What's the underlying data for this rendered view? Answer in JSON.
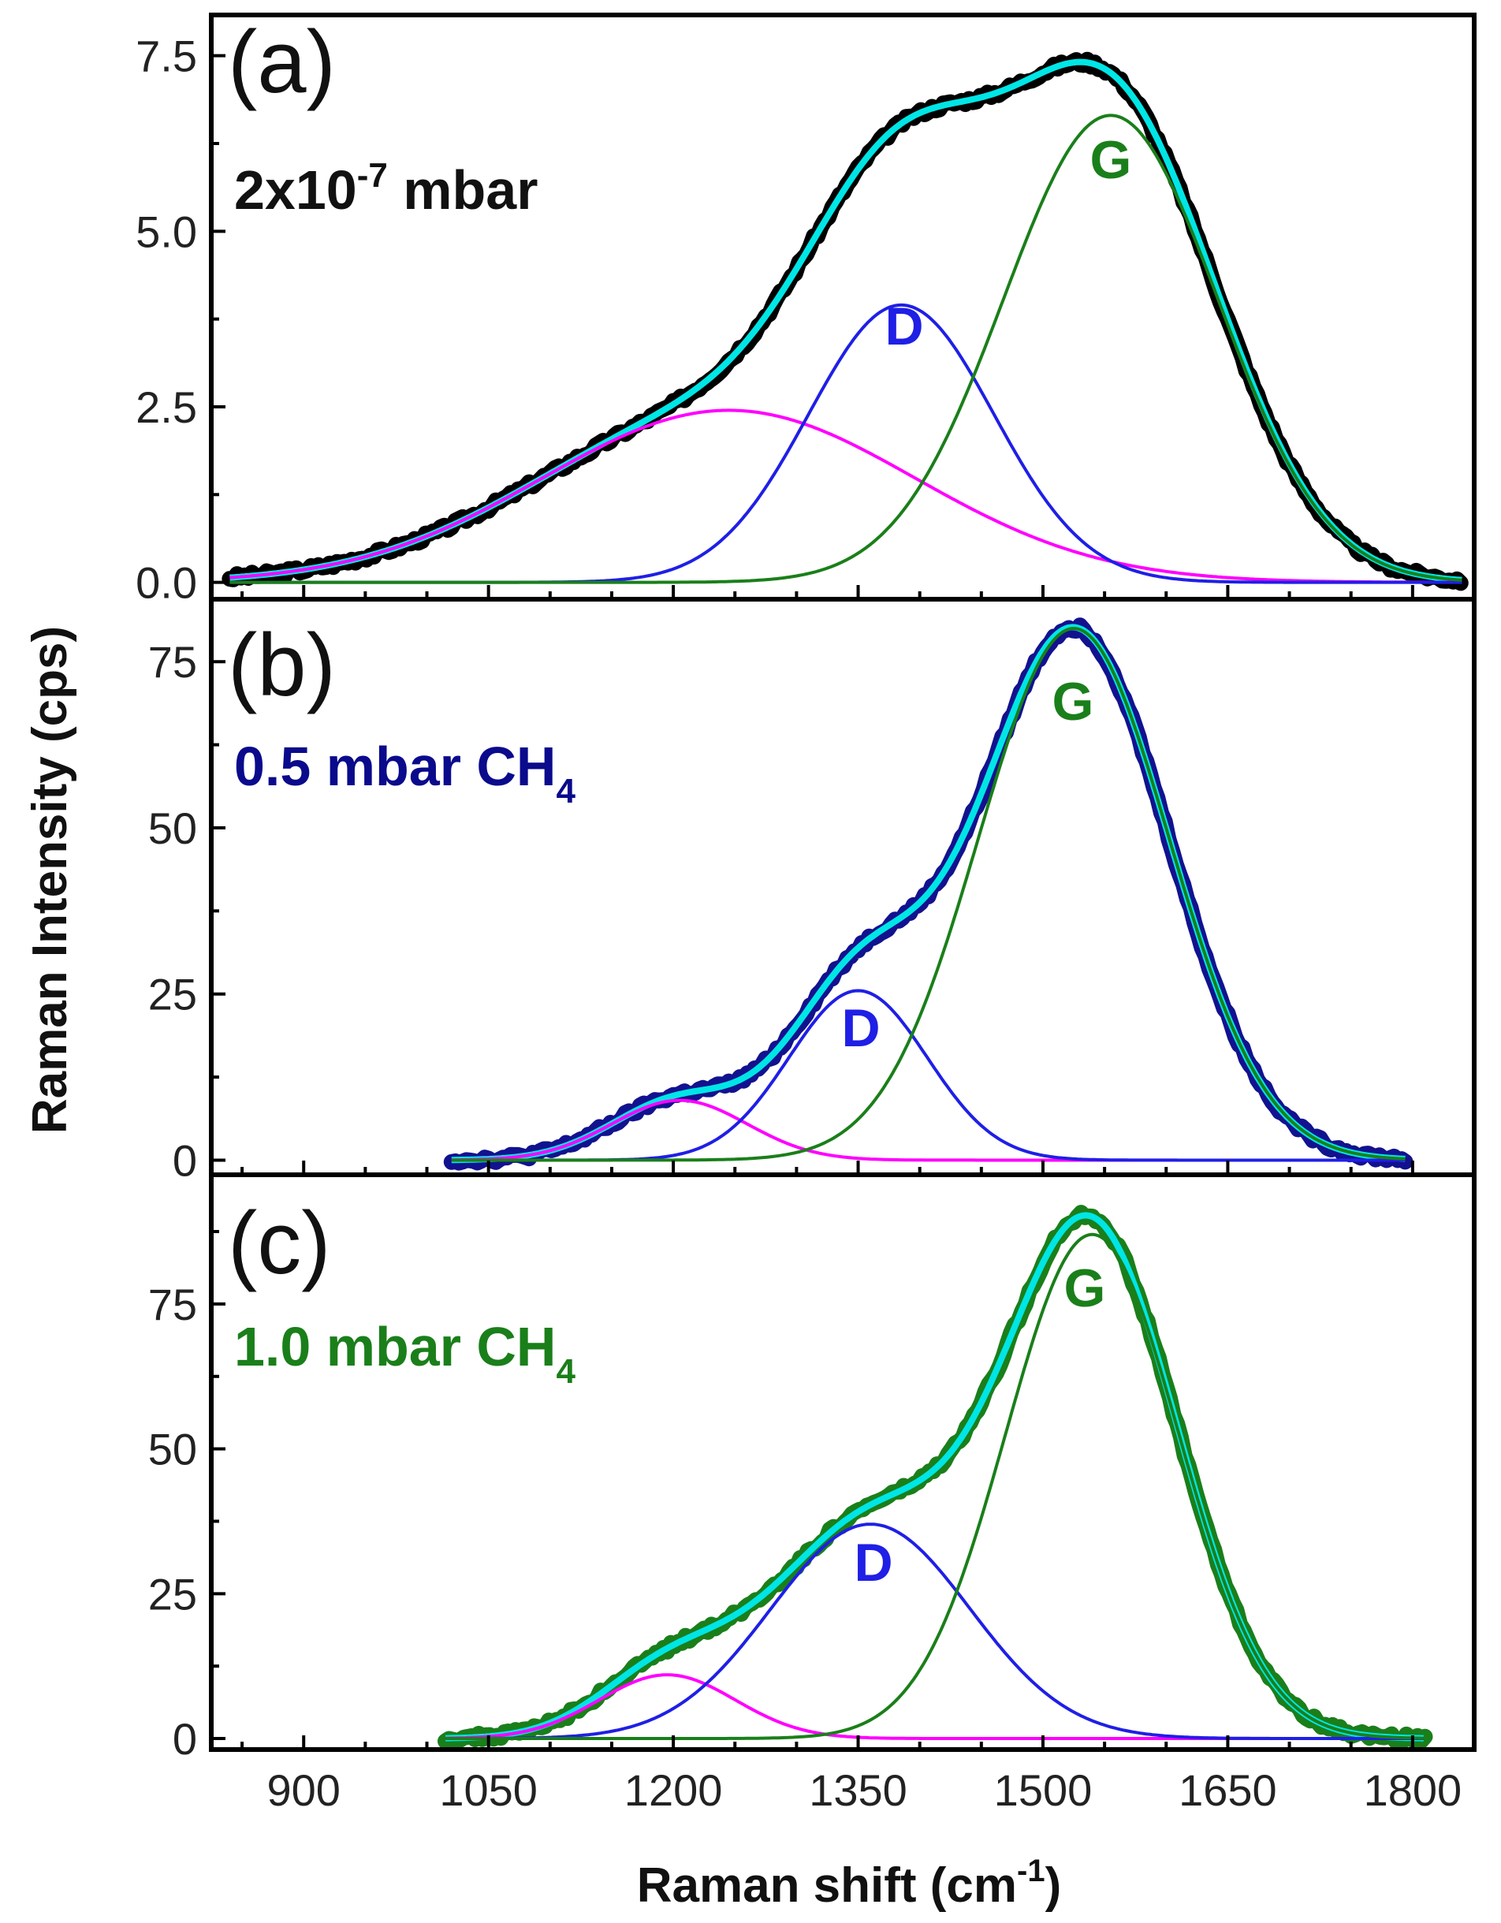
{
  "chart_data": {
    "type": "line",
    "xlabel": "Raman shift (cm",
    "xlabel_sup": "-1",
    "xlabel_end": ")",
    "ylabel": "Raman Intensity (cps)",
    "xlim": [
      825,
      1850
    ],
    "xticks": [
      "900",
      "1050",
      "1200",
      "1350",
      "1500",
      "1650",
      "1800"
    ],
    "colors": {
      "fit": "#00e5e5",
      "peak1": "#ff00ff",
      "D": "#1f1fe6",
      "G": "#1a7f1a"
    },
    "panels": [
      {
        "label": "(a)",
        "sample": "2x10",
        "sample_sup": "-7",
        "sample_end": " mbar",
        "sample_sub": "",
        "sample_color": "#111111",
        "data_color": "#000000",
        "ylim": [
          -0.24,
          8.08
        ],
        "yticks": [
          "0.0",
          "2.5",
          "5.0",
          "7.5"
        ],
        "ytick_values": [
          0,
          2.5,
          5,
          7.5
        ],
        "data_range": [
          840,
          1840
        ],
        "peaks": [
          {
            "name": "",
            "center": 1245,
            "amplitude": 2.45,
            "fwhm": 356
          },
          {
            "name": "D",
            "center": 1385,
            "amplitude": 3.95,
            "fwhm": 177
          },
          {
            "name": "G",
            "center": 1555,
            "amplitude": 6.65,
            "fwhm": 205
          }
        ]
      },
      {
        "label": "(b)",
        "sample": "0.5 mbar CH",
        "sample_sup": "",
        "sample_end": "",
        "sample_sub": "4",
        "sample_color": "#0a0a8c",
        "data_color": "#12128f",
        "ylim": [
          -2.2,
          84.4
        ],
        "yticks": [
          "0",
          "25",
          "50",
          "75"
        ],
        "ytick_values": [
          0,
          25,
          50,
          75
        ],
        "data_range": [
          1020,
          1795
        ],
        "peaks": [
          {
            "name": "",
            "center": 1205,
            "amplitude": 9,
            "fwhm": 129
          },
          {
            "name": "D",
            "center": 1350,
            "amplitude": 25.5,
            "fwhm": 132
          },
          {
            "name": "G",
            "center": 1525,
            "amplitude": 80,
            "fwhm": 182
          }
        ]
      },
      {
        "label": "(c)",
        "sample": "1.0 mbar CH",
        "sample_sup": "",
        "sample_end": "",
        "sample_sub": "4",
        "sample_color": "#1a7f1a",
        "data_color": "#1a7f1a",
        "ylim": [
          -1.9,
          97.3
        ],
        "yticks": [
          "0",
          "25",
          "50",
          "75"
        ],
        "ytick_values": [
          0,
          25,
          50,
          75
        ],
        "data_range": [
          1015,
          1810
        ],
        "peaks": [
          {
            "name": "",
            "center": 1195,
            "amplitude": 11,
            "fwhm": 130
          },
          {
            "name": "D",
            "center": 1360,
            "amplitude": 37,
            "fwhm": 190
          },
          {
            "name": "G",
            "center": 1540,
            "amplitude": 87,
            "fwhm": 165
          }
        ]
      }
    ]
  }
}
